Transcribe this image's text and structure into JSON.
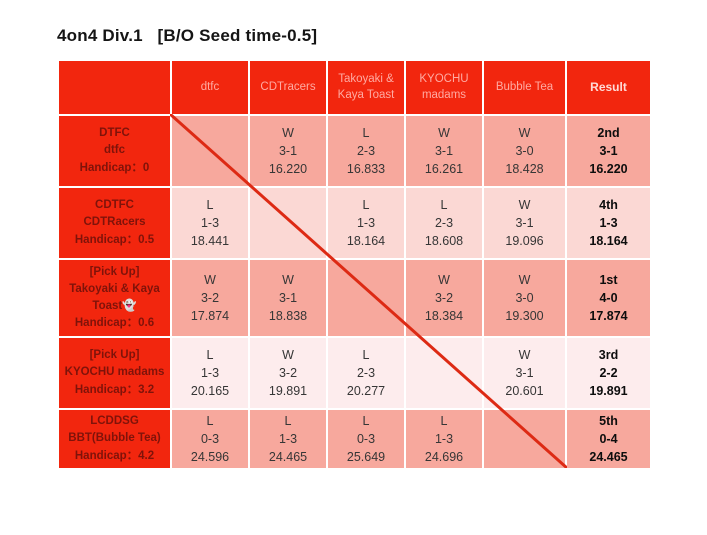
{
  "page": {
    "title": "4on4 Div.1   [B/O Seed time-0.5]"
  },
  "colors": {
    "header_bg": "#f2260e",
    "header_text": "#ffaaa2",
    "result_header_text": "#ffdad6",
    "row_header_text": "#7f130a",
    "cell_text": "#363636",
    "result_text": "#0d0d0d",
    "row_bg_a": "#f7a89d",
    "row_bg_b": "#fbd8d4",
    "row_bg_c": "#fdeced",
    "diagonal_line": "#dd2a14",
    "border": "#ffffff"
  },
  "table": {
    "column_headers": [
      "",
      "dtfc",
      "CDTracers",
      "Takoyaki & Kaya Toast",
      "KYOCHU madams",
      "Bubble Tea",
      "Result"
    ],
    "rows": [
      {
        "team_lines": [
          "DTFC",
          "dtfc",
          "Handicap：0"
        ],
        "shade": "salmon",
        "matches": [
          null,
          {
            "outcome": "W",
            "score": "3-1",
            "time": "16.220"
          },
          {
            "outcome": "L",
            "score": "2-3",
            "time": "16.833"
          },
          {
            "outcome": "W",
            "score": "3-1",
            "time": "16.261"
          },
          {
            "outcome": "W",
            "score": "3-0",
            "time": "18.428"
          }
        ],
        "result": {
          "rank": "2nd",
          "record": "3-1",
          "time": "16.220"
        }
      },
      {
        "team_lines": [
          "CDTFC",
          "CDTRacers",
          "Handicap：0.5"
        ],
        "shade": "pink",
        "matches": [
          {
            "outcome": "L",
            "score": "1-3",
            "time": "18.441"
          },
          null,
          {
            "outcome": "L",
            "score": "1-3",
            "time": "18.164"
          },
          {
            "outcome": "L",
            "score": "2-3",
            "time": "18.608"
          },
          {
            "outcome": "W",
            "score": "3-1",
            "time": "19.096"
          }
        ],
        "result": {
          "rank": "4th",
          "record": "1-3",
          "time": "18.164"
        }
      },
      {
        "team_lines": [
          "[Pick Up]",
          "Takoyaki & Kaya Toast👻",
          "Handicap：0.6"
        ],
        "shade": "salmon",
        "matches": [
          {
            "outcome": "W",
            "score": "3-2",
            "time": "17.874"
          },
          {
            "outcome": "W",
            "score": "3-1",
            "time": "18.838"
          },
          null,
          {
            "outcome": "W",
            "score": "3-2",
            "time": "18.384"
          },
          {
            "outcome": "W",
            "score": "3-0",
            "time": "19.300"
          }
        ],
        "result": {
          "rank": "1st",
          "record": "4-0",
          "time": "17.874"
        }
      },
      {
        "team_lines": [
          "[Pick Up]",
          "KYOCHU madams",
          "Handicap：3.2"
        ],
        "shade": "pale",
        "matches": [
          {
            "outcome": "L",
            "score": "1-3",
            "time": "20.165"
          },
          {
            "outcome": "W",
            "score": "3-2",
            "time": "19.891"
          },
          {
            "outcome": "L",
            "score": "2-3",
            "time": "20.277"
          },
          null,
          {
            "outcome": "W",
            "score": "3-1",
            "time": "20.601"
          }
        ],
        "result": {
          "rank": "3rd",
          "record": "2-2",
          "time": "19.891"
        }
      },
      {
        "team_lines": [
          "LCDDSG",
          "BBT(Bubble Tea)",
          "Handicap：4.2"
        ],
        "shade": "salmon",
        "matches": [
          {
            "outcome": "L",
            "score": "0-3",
            "time": "24.596"
          },
          {
            "outcome": "L",
            "score": "1-3",
            "time": "24.465"
          },
          {
            "outcome": "L",
            "score": "0-3",
            "time": "25.649"
          },
          {
            "outcome": "L",
            "score": "1-3",
            "time": "24.696"
          },
          null
        ],
        "result": {
          "rank": "5th",
          "record": "0-4",
          "time": "24.465"
        }
      }
    ]
  }
}
